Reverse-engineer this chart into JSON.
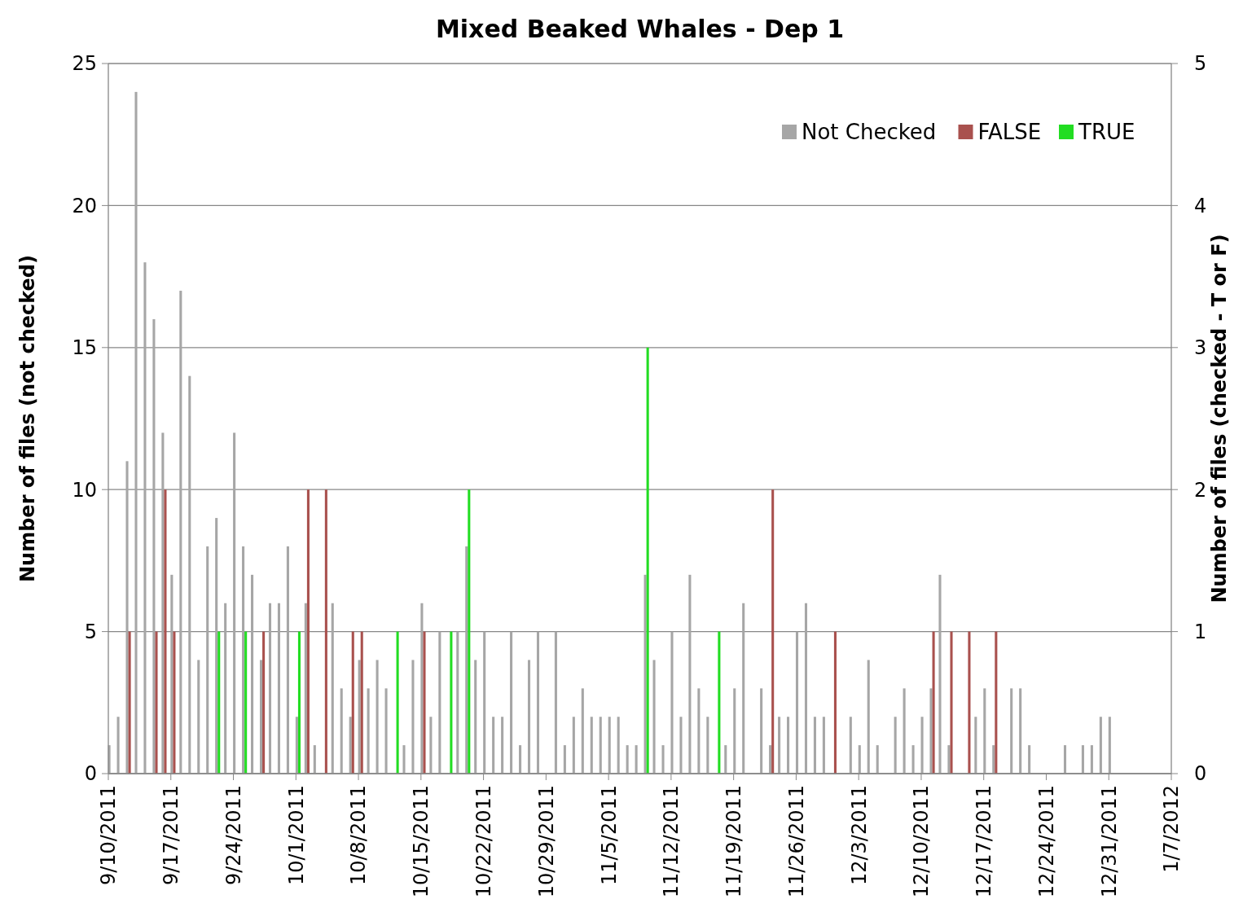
{
  "chart_data": {
    "type": "bar",
    "title": "Mixed Beaked Whales  - Dep 1",
    "ylabel": "Number of files (not checked)",
    "y2label": "Number of files (checked - T or F)",
    "xlim": [
      "2011-09-10",
      "2012-01-07"
    ],
    "xticks": [
      {
        "value": "2011-09-10",
        "label": "9/10/2011"
      },
      {
        "value": "2011-09-17",
        "label": "9/17/2011"
      },
      {
        "value": "2011-09-24",
        "label": "9/24/2011"
      },
      {
        "value": "2011-10-01",
        "label": "10/1/2011"
      },
      {
        "value": "2011-10-08",
        "label": "10/8/2011"
      },
      {
        "value": "2011-10-15",
        "label": "10/15/2011"
      },
      {
        "value": "2011-10-22",
        "label": "10/22/2011"
      },
      {
        "value": "2011-10-29",
        "label": "10/29/2011"
      },
      {
        "value": "2011-11-05",
        "label": "11/5/2011"
      },
      {
        "value": "2011-11-12",
        "label": "11/12/2011"
      },
      {
        "value": "2011-11-19",
        "label": "11/19/2011"
      },
      {
        "value": "2011-11-26",
        "label": "11/26/2011"
      },
      {
        "value": "2011-12-03",
        "label": "12/3/2011"
      },
      {
        "value": "2011-12-10",
        "label": "12/10/2011"
      },
      {
        "value": "2011-12-17",
        "label": "12/17/2011"
      },
      {
        "value": "2011-12-24",
        "label": "12/24/2011"
      },
      {
        "value": "2011-12-31",
        "label": "12/31/2011"
      },
      {
        "value": "2012-01-07",
        "label": "1/7/2012"
      }
    ],
    "ylim": [
      0,
      25
    ],
    "yticks": [
      0,
      5,
      10,
      15,
      20,
      25
    ],
    "y2lim": [
      0,
      5
    ],
    "y2ticks": [
      0,
      1,
      2,
      3,
      4,
      5
    ],
    "grid": "y",
    "legend": "top right",
    "series": [
      {
        "name": "Not Checked",
        "color": "#a6a6a6",
        "x": [
          "2011-09-10",
          "2011-09-11",
          "2011-09-12",
          "2011-09-13",
          "2011-09-14",
          "2011-09-15",
          "2011-09-16",
          "2011-09-17",
          "2011-09-18",
          "2011-09-19",
          "2011-09-20",
          "2011-09-21",
          "2011-09-22",
          "2011-09-23",
          "2011-09-24",
          "2011-09-25",
          "2011-09-26",
          "2011-09-27",
          "2011-09-28",
          "2011-09-29",
          "2011-09-30",
          "2011-10-01",
          "2011-10-02",
          "2011-10-03",
          "2011-10-05",
          "2011-10-06",
          "2011-10-07",
          "2011-10-08",
          "2011-10-09",
          "2011-10-10",
          "2011-10-11",
          "2011-10-13",
          "2011-10-14",
          "2011-10-15",
          "2011-10-16",
          "2011-10-17",
          "2011-10-19",
          "2011-10-20",
          "2011-10-21",
          "2011-10-22",
          "2011-10-23",
          "2011-10-24",
          "2011-10-25",
          "2011-10-26",
          "2011-10-27",
          "2011-10-28",
          "2011-10-30",
          "2011-10-31",
          "2011-11-01",
          "2011-11-02",
          "2011-11-03",
          "2011-11-04",
          "2011-11-05",
          "2011-11-06",
          "2011-11-07",
          "2011-11-08",
          "2011-11-09",
          "2011-11-10",
          "2011-11-11",
          "2011-11-12",
          "2011-11-13",
          "2011-11-14",
          "2011-11-15",
          "2011-11-16",
          "2011-11-18",
          "2011-11-19",
          "2011-11-20",
          "2011-11-22",
          "2011-11-23",
          "2011-11-24",
          "2011-11-25",
          "2011-11-26",
          "2011-11-27",
          "2011-11-28",
          "2011-11-29",
          "2011-12-02",
          "2011-12-03",
          "2011-12-04",
          "2011-12-05",
          "2011-12-07",
          "2011-12-08",
          "2011-12-09",
          "2011-12-10",
          "2011-12-11",
          "2011-12-12",
          "2011-12-13",
          "2011-12-16",
          "2011-12-17",
          "2011-12-18",
          "2011-12-20",
          "2011-12-21",
          "2011-12-22",
          "2011-12-26",
          "2011-12-28",
          "2011-12-29",
          "2011-12-30",
          "2011-12-31"
        ],
        "values": [
          1,
          2,
          11,
          24,
          18,
          16,
          12,
          7,
          17,
          14,
          4,
          8,
          9,
          6,
          12,
          8,
          7,
          4,
          6,
          6,
          8,
          2,
          6,
          1,
          6,
          3,
          2,
          4,
          3,
          4,
          3,
          1,
          4,
          6,
          2,
          5,
          5,
          8,
          4,
          5,
          2,
          2,
          5,
          1,
          4,
          5,
          5,
          1,
          2,
          3,
          2,
          2,
          2,
          2,
          1,
          1,
          7,
          4,
          1,
          5,
          2,
          7,
          3,
          2,
          1,
          3,
          6,
          3,
          1,
          2,
          2,
          5,
          6,
          2,
          2,
          2,
          1,
          4,
          1,
          2,
          3,
          1,
          2,
          3,
          7,
          1,
          2,
          3,
          1,
          3,
          3,
          1,
          1,
          1,
          1,
          2,
          2
        ]
      },
      {
        "name": "FALSE",
        "color": "#a9514e",
        "axis": "y2",
        "x": [
          "2011-09-12",
          "2011-09-15",
          "2011-09-16",
          "2011-09-17",
          "2011-09-27",
          "2011-10-02",
          "2011-10-04",
          "2011-10-07",
          "2011-10-08",
          "2011-10-15",
          "2011-11-23",
          "2011-11-30",
          "2011-12-11",
          "2011-12-13",
          "2011-12-15",
          "2011-12-18"
        ],
        "values": [
          1,
          1,
          2,
          1,
          1,
          2,
          2,
          1,
          1,
          1,
          2,
          1,
          1,
          1,
          1,
          1
        ]
      },
      {
        "name": "TRUE",
        "color": "#22dd22",
        "axis": "y2",
        "x": [
          "2011-09-22",
          "2011-09-25",
          "2011-10-01",
          "2011-10-12",
          "2011-10-18",
          "2011-10-20",
          "2011-11-09",
          "2011-11-17"
        ],
        "values": [
          1,
          1,
          1,
          1,
          1,
          2,
          3,
          1
        ]
      }
    ]
  }
}
